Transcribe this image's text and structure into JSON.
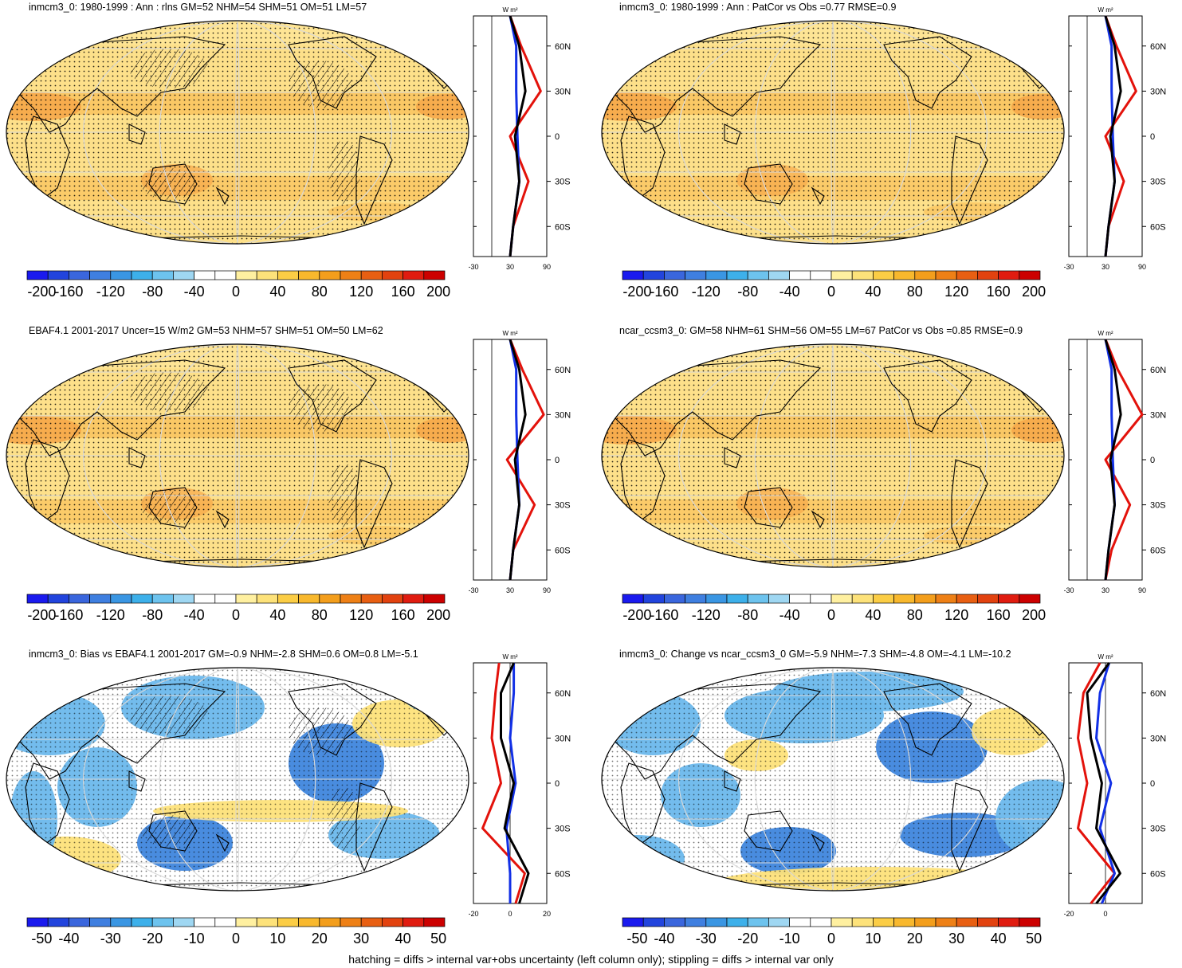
{
  "panels": [
    {
      "title": "inmcm3_0: 1980-1999 : Ann : rlns GM=52 NHM=54 SHM=51 OM=51 LM=57",
      "colorbar_labels": [
        "-200",
        "-160",
        "-120",
        "-80",
        "-40",
        "0",
        "40",
        "80",
        "120",
        "160",
        "200"
      ],
      "zonal": {
        "units": "W m²",
        "xticks": [
          "-30",
          "30",
          "90"
        ],
        "lat_ticks": [
          "60N",
          "30N",
          "0",
          "30S",
          "60S"
        ]
      },
      "style": "mean",
      "hatch": true
    },
    {
      "title": "inmcm3_0: 1980-1999 : Ann : PatCor vs Obs =0.77 RMSE=0.9",
      "colorbar_labels": [
        "-200",
        "-160",
        "-120",
        "-80",
        "-40",
        "0",
        "40",
        "80",
        "120",
        "160",
        "200"
      ],
      "zonal": {
        "units": "W m²",
        "xticks": [
          "-30",
          "30",
          "90"
        ],
        "lat_ticks": [
          "60N",
          "30N",
          "0",
          "30S",
          "60S"
        ]
      },
      "style": "mean",
      "hatch": false
    },
    {
      "title": "EBAF4.1 2001-2017 Uncer=15 W/m2 GM=53 NHM=57 SHM=51 OM=50 LM=62",
      "colorbar_labels": [
        "-200",
        "-160",
        "-120",
        "-80",
        "-40",
        "0",
        "40",
        "80",
        "120",
        "160",
        "200"
      ],
      "zonal": {
        "units": "W m²",
        "xticks": [
          "-30",
          "30",
          "90"
        ],
        "lat_ticks": [
          "60N",
          "30N",
          "0",
          "30S",
          "60S"
        ]
      },
      "style": "mean",
      "hatch": true
    },
    {
      "title": "ncar_ccsm3_0: GM=58 NHM=61 SHM=56 OM=55 LM=67 PatCor vs Obs =0.85 RMSE=0.9",
      "colorbar_labels": [
        "-200",
        "-160",
        "-120",
        "-80",
        "-40",
        "0",
        "40",
        "80",
        "120",
        "160",
        "200"
      ],
      "zonal": {
        "units": "W m²",
        "xticks": [
          "-30",
          "30",
          "90"
        ],
        "lat_ticks": [
          "60N",
          "30N",
          "0",
          "30S",
          "60S"
        ]
      },
      "style": "mean",
      "hatch": false
    },
    {
      "title": "inmcm3_0: Bias vs EBAF4.1 2001-2017 GM=-0.9 NHM=-2.8 SHM=0.6 OM=0.8 LM=-5.1",
      "colorbar_labels": [
        "-50",
        "-40",
        "-30",
        "-20",
        "-10",
        "0",
        "10",
        "20",
        "30",
        "40",
        "50"
      ],
      "zonal": {
        "units": "W m²",
        "xticks": [
          "-20",
          "0",
          "20"
        ],
        "lat_ticks": [
          "60N",
          "30N",
          "0",
          "30S",
          "60S"
        ]
      },
      "style": "diff",
      "hatch": true
    },
    {
      "title": "inmcm3_0: Change vs ncar_ccsm3_0 GM=-5.9 NHM=-7.3 SHM=-4.8 OM=-4.1 LM=-10.2",
      "colorbar_labels": [
        "-50",
        "-40",
        "-30",
        "-20",
        "-10",
        "0",
        "10",
        "20",
        "30",
        "40",
        "50"
      ],
      "zonal": {
        "units": "W m²",
        "xticks": [
          "-20",
          "0"
        ],
        "lat_ticks": [
          "60N",
          "30N",
          "0",
          "30S",
          "60S"
        ]
      },
      "style": "diff",
      "hatch": false
    }
  ],
  "colorbar_colors": [
    "#1a1aee",
    "#2244dd",
    "#3a66dd",
    "#3f7fe0",
    "#3a96e3",
    "#3db0ea",
    "#6dc3ee",
    "#9fd7f2",
    "#ffffff",
    "#ffffff",
    "#fff0a0",
    "#fde27a",
    "#fbcd45",
    "#f8b82d",
    "#f39e1c",
    "#ee8016",
    "#e85f12",
    "#e2420f",
    "#e01c10",
    "#cc0000"
  ],
  "map_colors": {
    "ocean_mean": "#fde08a",
    "land_mean": "#fcd373",
    "warm_band": "#f6a84a",
    "diff_pos": "#fde27a",
    "diff_neg": "#6cb8ec",
    "diff_neg_strong": "#3f86dd",
    "coast": "#000000",
    "grid": "#d8d8d8"
  },
  "zonal_colors": {
    "model": "#000000",
    "ref": "#e3120b",
    "obs": "#1230e6"
  },
  "footer": "hatching = diffs > internal var+obs uncertainty (left column only); stippling = diffs > internal var only",
  "chart_data": [
    {
      "type": "heatmap",
      "title": "inmcm3_0: 1980-1999 : Ann : rlns GM=52 NHM=54 SHM=51 OM=51 LM=57",
      "colorbar_range": [
        -200,
        200
      ],
      "colorbar_levels": [
        -200,
        -180,
        -160,
        -140,
        -120,
        -100,
        -80,
        -60,
        -40,
        -20,
        0,
        20,
        40,
        60,
        80,
        100,
        120,
        140,
        160,
        180,
        200
      ],
      "zonal_mean": {
        "lat": [
          -80,
          -60,
          -30,
          0,
          30,
          60,
          80
        ],
        "model": [
          30,
          35,
          45,
          38,
          55,
          45,
          30
        ],
        "ref": [
          30,
          35,
          60,
          30,
          80,
          48,
          30
        ],
        "obs": [
          30,
          35,
          45,
          42,
          40,
          40,
          30
        ],
        "xlim": [
          -30,
          90
        ]
      }
    },
    {
      "type": "heatmap",
      "title": "inmcm3_0: 1980-1999 : Ann : PatCor vs Obs =0.77 RMSE=0.9",
      "colorbar_range": [
        -200,
        200
      ],
      "zonal_mean": {
        "lat": [
          -80,
          -60,
          -30,
          0,
          30,
          60,
          80
        ],
        "model": [
          30,
          35,
          45,
          38,
          55,
          45,
          30
        ],
        "ref": [
          30,
          35,
          60,
          30,
          80,
          48,
          30
        ],
        "obs": [
          30,
          35,
          45,
          42,
          40,
          40,
          30
        ],
        "xlim": [
          -30,
          90
        ]
      }
    },
    {
      "type": "heatmap",
      "title": "EBAF4.1 2001-2017 Uncer=15 W/m2 GM=53 NHM=57 SHM=51 OM=50 LM=62",
      "colorbar_range": [
        -200,
        200
      ],
      "zonal_mean": {
        "lat": [
          -80,
          -60,
          -30,
          0,
          30,
          60,
          80
        ],
        "model": [
          30,
          35,
          45,
          38,
          55,
          45,
          30
        ],
        "ref": [
          30,
          35,
          70,
          25,
          85,
          50,
          30
        ],
        "obs": [
          30,
          35,
          45,
          42,
          40,
          40,
          30
        ],
        "xlim": [
          -30,
          90
        ]
      }
    },
    {
      "type": "heatmap",
      "title": "ncar_ccsm3_0: GM=58 NHM=61 SHM=56 OM=55 LM=67 PatCor vs Obs =0.85 RMSE=0.9",
      "colorbar_range": [
        -200,
        200
      ],
      "zonal_mean": {
        "lat": [
          -80,
          -60,
          -30,
          0,
          30,
          60,
          80
        ],
        "model": [
          30,
          35,
          45,
          38,
          55,
          45,
          30
        ],
        "ref": [
          30,
          40,
          70,
          30,
          90,
          50,
          30
        ],
        "obs": [
          30,
          35,
          45,
          42,
          40,
          40,
          30
        ],
        "xlim": [
          -30,
          90
        ]
      }
    },
    {
      "type": "heatmap",
      "title": "inmcm3_0: Bias vs EBAF4.1 2001-2017 GM=-0.9 NHM=-2.8 SHM=0.6 OM=0.8 LM=-5.1",
      "colorbar_range": [
        -50,
        50
      ],
      "zonal_mean": {
        "lat": [
          -80,
          -60,
          -30,
          0,
          30,
          60,
          80
        ],
        "model": [
          5,
          10,
          -3,
          2,
          -5,
          -5,
          2
        ],
        "ref": [
          3,
          8,
          -15,
          -5,
          -10,
          -8,
          -6
        ],
        "obs": [
          0,
          0,
          -2,
          3,
          0,
          2,
          2
        ],
        "xlim": [
          -20,
          20
        ]
      }
    },
    {
      "type": "heatmap",
      "title": "inmcm3_0: Change vs ncar_ccsm3_0 GM=-5.9 NHM=-7.3 SHM=-4.8 OM=-4.1 LM=-10.2",
      "colorbar_range": [
        -50,
        50
      ],
      "zonal_mean": {
        "lat": [
          -80,
          -60,
          -30,
          0,
          30,
          60,
          80
        ],
        "model": [
          -5,
          8,
          -5,
          -2,
          -8,
          -10,
          2
        ],
        "ref": [
          -8,
          5,
          -15,
          -10,
          -15,
          -12,
          -3
        ],
        "obs": [
          -2,
          5,
          -3,
          3,
          -5,
          -3,
          2
        ],
        "xlim": [
          -20,
          20
        ]
      }
    }
  ]
}
